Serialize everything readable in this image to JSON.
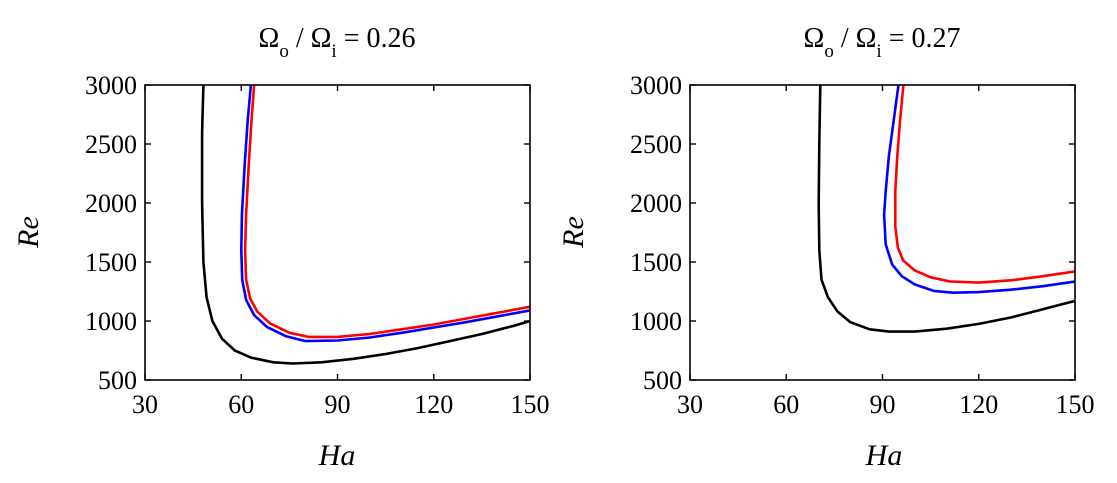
{
  "chart_data": [
    {
      "type": "line",
      "title_lhs": "Ω",
      "title_lhs_sub": "o",
      "title_mid": " / Ω",
      "title_mid_sub": "i",
      "title_rhs": " = 0.26",
      "xlabel": "Ha",
      "ylabel": "Re",
      "xlim": [
        30,
        150
      ],
      "ylim": [
        500,
        3000
      ],
      "xticks": [
        "30",
        "60",
        "90",
        "120",
        "150"
      ],
      "yticks": [
        "500",
        "1000",
        "1500",
        "2000",
        "2500",
        "3000"
      ],
      "grid": false,
      "series": [
        {
          "color": "#000000",
          "x": [
            48.2,
            47.8,
            47.8,
            48.2,
            49.2,
            51,
            54,
            58,
            63,
            70,
            76,
            85,
            95,
            105,
            115,
            125,
            135,
            145,
            150
          ],
          "y": [
            3000,
            2600,
            2000,
            1500,
            1200,
            1000,
            850,
            750,
            690,
            650,
            640,
            650,
            680,
            720,
            770,
            830,
            890,
            960,
            1000
          ]
        },
        {
          "color": "#0000ff",
          "x": [
            63,
            62,
            61,
            60.2,
            60,
            60.3,
            61.5,
            64,
            68,
            74,
            80,
            90,
            100,
            110,
            120,
            130,
            140,
            150
          ],
          "y": [
            3000,
            2700,
            2300,
            1900,
            1600,
            1350,
            1180,
            1050,
            950,
            870,
            830,
            835,
            860,
            900,
            945,
            990,
            1040,
            1090
          ]
        },
        {
          "color": "#ff0000",
          "x": [
            64,
            63.2,
            62.3,
            61.5,
            61.2,
            61.5,
            62.8,
            65,
            69,
            75,
            81,
            90,
            100,
            110,
            120,
            130,
            140,
            150
          ],
          "y": [
            3000,
            2700,
            2300,
            1900,
            1600,
            1350,
            1190,
            1080,
            980,
            900,
            865,
            865,
            890,
            930,
            970,
            1020,
            1070,
            1120
          ]
        }
      ]
    },
    {
      "type": "line",
      "title_lhs": "Ω",
      "title_lhs_sub": "o",
      "title_mid": " / Ω",
      "title_mid_sub": "i",
      "title_rhs": " = 0.27",
      "xlabel": "Ha",
      "ylabel": "Re",
      "xlim": [
        30,
        150
      ],
      "ylim": [
        500,
        3000
      ],
      "xticks": [
        "30",
        "60",
        "90",
        "120",
        "150"
      ],
      "yticks": [
        "500",
        "1000",
        "1500",
        "2000",
        "2500",
        "3000"
      ],
      "grid": false,
      "series": [
        {
          "color": "#000000",
          "x": [
            70.6,
            70.3,
            70.1,
            70.3,
            71,
            73,
            76,
            80,
            86,
            92,
            100,
            110,
            120,
            130,
            140,
            150
          ],
          "y": [
            3000,
            2500,
            2000,
            1600,
            1350,
            1200,
            1080,
            990,
            930,
            910,
            910,
            935,
            975,
            1030,
            1100,
            1170
          ]
        },
        {
          "color": "#0000ff",
          "x": [
            95,
            93.5,
            92,
            91,
            90.5,
            91,
            93,
            96,
            100,
            106,
            112,
            120,
            130,
            140,
            150
          ],
          "y": [
            3000,
            2700,
            2400,
            2100,
            1900,
            1650,
            1480,
            1380,
            1310,
            1255,
            1240,
            1245,
            1265,
            1295,
            1335
          ]
        },
        {
          "color": "#ff0000",
          "x": [
            96.5,
            95.5,
            94.6,
            94,
            94,
            94.8,
            96.5,
            100,
            105,
            111,
            120,
            130,
            140,
            150
          ],
          "y": [
            3000,
            2700,
            2400,
            2100,
            1800,
            1620,
            1510,
            1430,
            1370,
            1335,
            1325,
            1345,
            1380,
            1420
          ]
        }
      ]
    }
  ]
}
